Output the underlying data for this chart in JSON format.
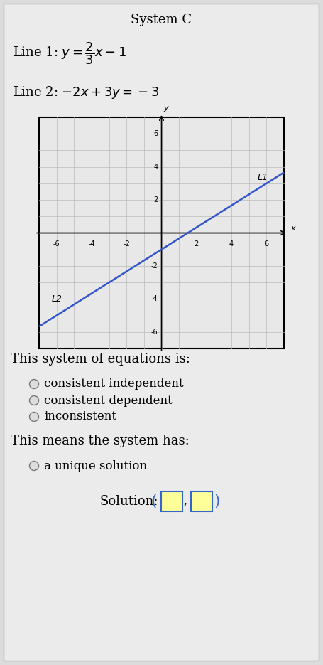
{
  "title": "System C",
  "line1_label_prefix": "Line 1: ",
  "line2_label": "Line 2:  −2x+3y=−3",
  "line_color": "#3355cc",
  "grid_color": "#cccccc",
  "bg_color": "#dcdcdc",
  "card_color": "#ebebeb",
  "graph_bg": "#e0e0e0",
  "radio_options_1": [
    "consistent independent",
    "consistent dependent",
    "inconsistent"
  ],
  "radio_options_2": [
    "a unique solution"
  ],
  "question1": "This system of equations is:",
  "question2": "This means the system has:",
  "solution_label": "Solution:",
  "L1_tag": "L1",
  "L2_tag": "L2",
  "sol_box_color": "#ffff99",
  "sol_box_edge": "#3366cc"
}
